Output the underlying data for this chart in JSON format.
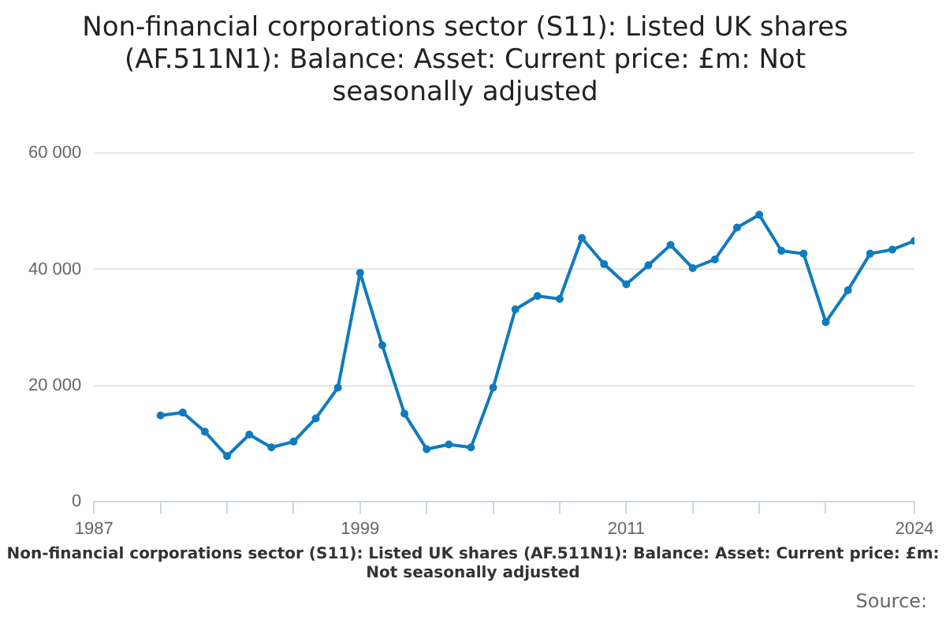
{
  "chart_data": {
    "type": "line",
    "title": [
      "Non-financial corporations sector (S11): Listed UK shares",
      "(AF.511N1): Balance: Asset: Current price: £m: Not",
      "seasonally adjusted"
    ],
    "xlabel": "Non-financial corporations sector (S11): Listed UK shares (AF.511N1): Balance: Asset: Current price: £m: Not seasonally adjusted",
    "annotations": [
      "Source:"
    ],
    "x": [
      1990,
      1991,
      1992,
      1993,
      1994,
      1995,
      1996,
      1997,
      1998,
      1999,
      2000,
      2001,
      2002,
      2003,
      2004,
      2005,
      2006,
      2007,
      2008,
      2009,
      2010,
      2011,
      2012,
      2013,
      2014,
      2015,
      2016,
      2017,
      2018,
      2019,
      2020,
      2021,
      2022,
      2023,
      2024
    ],
    "series": [
      {
        "color": "#0f7ac0",
        "values": [
          14800,
          15300,
          12000,
          7800,
          11500,
          9300,
          10300,
          14300,
          19600,
          39400,
          26900,
          15100,
          9000,
          9800,
          9300,
          19600,
          33100,
          35400,
          34900,
          45400,
          40900,
          37400,
          40700,
          44200,
          40200,
          41700,
          47200,
          49400,
          43200,
          42700,
          30900,
          36400,
          42700,
          43400,
          44900
        ]
      }
    ],
    "xlim": [
      1987,
      2024
    ],
    "xticks": [
      1987,
      {
        "value": 1990,
        "label": null
      },
      {
        "value": 1993,
        "label": null
      },
      {
        "value": 1996,
        "label": null
      },
      1999,
      {
        "value": 2002,
        "label": null
      },
      {
        "value": 2005,
        "label": null
      },
      {
        "value": 2008,
        "label": null
      },
      2011,
      {
        "value": 2014,
        "label": null
      },
      {
        "value": 2017,
        "label": null
      },
      {
        "value": 2020,
        "label": null
      },
      2024
    ],
    "ylim": [
      0,
      60000
    ],
    "yticks": [
      0,
      {
        "value": 20000,
        "label": "20 000"
      },
      {
        "value": 40000,
        "label": "40 000"
      },
      {
        "value": 60000,
        "label": "60 000"
      }
    ],
    "grid": "y",
    "marker": "circle",
    "line_style": "solid",
    "legend": false
  }
}
